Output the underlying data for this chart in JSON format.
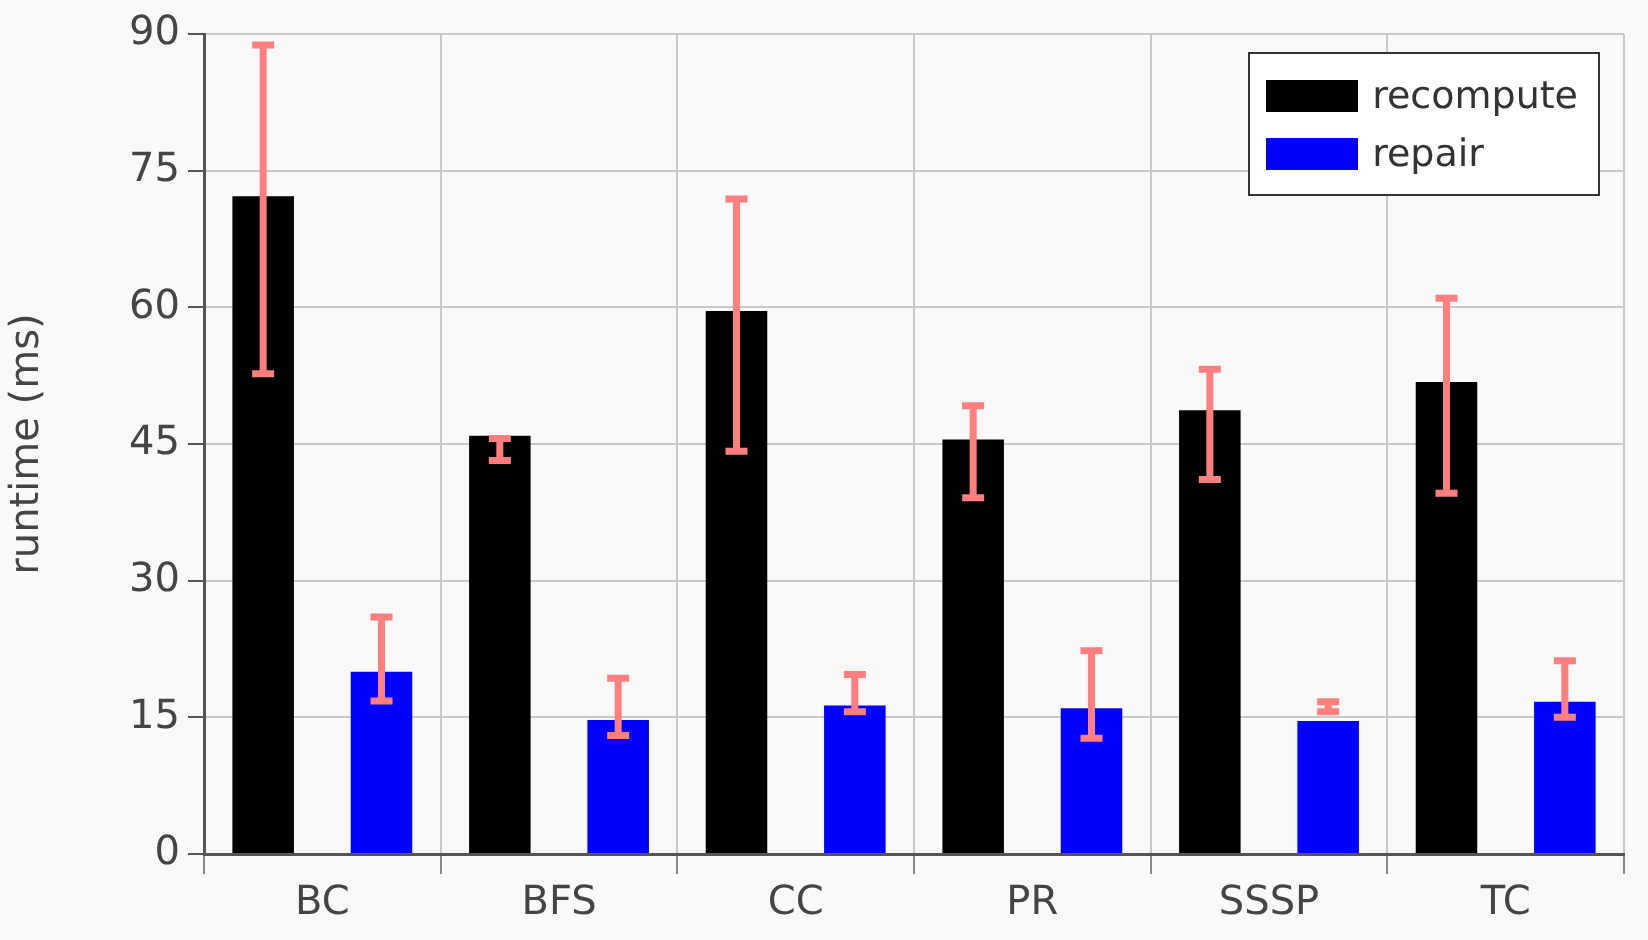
{
  "chart_data": {
    "type": "bar",
    "ylabel": "runtime (ms)",
    "categories": [
      "BC",
      "BFS",
      "CC",
      "PR",
      "SSSP",
      "TC"
    ],
    "series": [
      {
        "name": "recompute",
        "color": "#000000",
        "values": [
          72.2,
          45.9,
          59.6,
          45.5,
          48.7,
          51.8
        ],
        "errors": [
          [
            52.7,
            88.8
          ],
          [
            43.2,
            45.6
          ],
          [
            44.2,
            71.9
          ],
          [
            39.1,
            49.2
          ],
          [
            41.1,
            53.2
          ],
          [
            39.6,
            61.0
          ]
        ]
      },
      {
        "name": "repair",
        "color": "#0000ff",
        "values": [
          20.0,
          14.7,
          16.3,
          16.0,
          14.6,
          16.7
        ],
        "errors": [
          [
            16.8,
            26.0
          ],
          [
            13.0,
            19.3
          ],
          [
            15.6,
            19.7
          ],
          [
            12.7,
            22.3
          ],
          [
            15.6,
            16.7
          ],
          [
            15.0,
            21.2
          ]
        ]
      }
    ],
    "ylim": [
      0,
      90
    ],
    "yticks": [
      0,
      15,
      30,
      45,
      60,
      75,
      90
    ],
    "grid": true,
    "legend": "top right"
  }
}
